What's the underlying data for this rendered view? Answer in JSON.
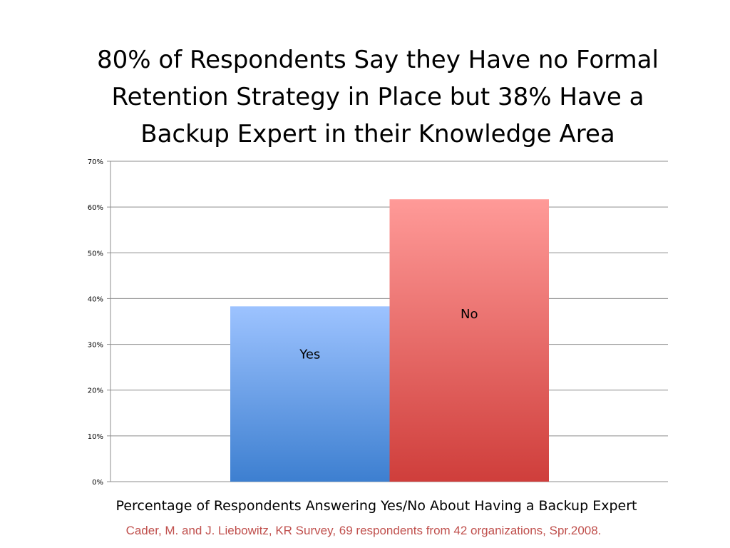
{
  "title": "80% of Respondents Say they Have no Formal\nRetention Strategy in Place but 38% Have a\nBackup Expert in their Knowledge Area",
  "xlabel": "Percentage of Respondents Answering Yes/No About Having a Backup Expert",
  "citation": "Cader, M. and J. Liebowitz, KR Survey, 69 respondents from 42 organizations, Spr.2008.",
  "colors": {
    "yes_top": "#9dc3ff",
    "yes_bottom": "#3d7fd0",
    "no_top": "#ff9a98",
    "no_bottom": "#cf3e3b",
    "grid": "#8c8c8c",
    "citation": "#c0504d"
  },
  "chart_data": {
    "type": "bar",
    "categories": [
      "Yes",
      "No"
    ],
    "values": [
      38.3,
      61.7
    ],
    "ylim": [
      0,
      70
    ],
    "yticks": [
      "0%",
      "10%",
      "20%",
      "30%",
      "40%",
      "50%",
      "60%",
      "70%"
    ],
    "xlabel": "Percentage of Respondents Answering Yes/No About Having a Backup Expert",
    "ylabel": "",
    "grid": true,
    "bar_labels": [
      "Yes",
      "No"
    ]
  }
}
